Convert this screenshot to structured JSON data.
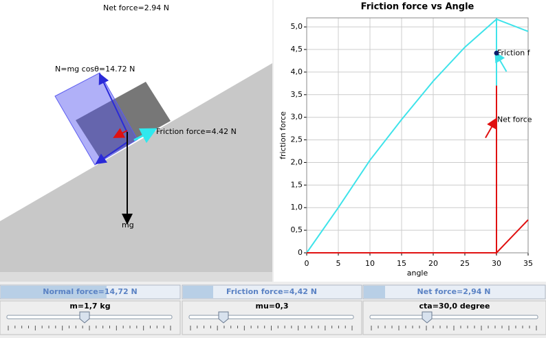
{
  "simulation": {
    "net_force_label": "Net force=2.94 N",
    "normal_label": "N=mg cosθ=14.72 N",
    "friction_label": "Friction force=4.42 N",
    "weight_label": "mg"
  },
  "chart_data": {
    "type": "line",
    "title": "Friction force vs Angle",
    "x_label": "angle",
    "y_label": "friction force",
    "series": [
      {
        "color": "#3ee3ea",
        "x": [
          0,
          5,
          10,
          15,
          20,
          25,
          30,
          30,
          30,
          35
        ],
        "values": [
          0,
          1.0,
          2.05,
          2.95,
          3.8,
          4.55,
          5.17,
          3.5,
          5.17,
          4.9
        ]
      },
      {
        "color": "#e01010",
        "x": [
          0,
          30,
          30,
          30,
          35
        ],
        "values": [
          0,
          0,
          3.7,
          0,
          0.73
        ]
      }
    ],
    "points": [
      {
        "x": 30,
        "y": 4.42,
        "color": "#0b1d6b"
      }
    ],
    "annotations": [
      {
        "text": "Friction f",
        "x": 30,
        "y": 4.42,
        "color": "#3ee3ea"
      },
      {
        "text": "Net force",
        "x": 30,
        "y": 2.94,
        "color": "#e01010"
      }
    ],
    "xlim": [
      0,
      35
    ],
    "ylim": [
      0,
      5.2
    ],
    "xticks": [
      0,
      5,
      10,
      15,
      20,
      25,
      30,
      35
    ],
    "yticks": [
      0,
      {
        "value": 0.5,
        "label": "0,5"
      },
      {
        "value": 1,
        "label": "1,0"
      },
      {
        "value": 1.5,
        "label": "1,5"
      },
      {
        "value": 2,
        "label": "2,0"
      },
      {
        "value": 2.5,
        "label": "2,5"
      },
      {
        "value": 3,
        "label": "3,0"
      },
      {
        "value": 3.5,
        "label": "3,5"
      },
      {
        "value": 4,
        "label": "4,0"
      },
      {
        "value": 4.5,
        "label": "4,5"
      },
      {
        "value": 5,
        "label": "5,0"
      }
    ],
    "grid": true
  },
  "status_bars": [
    "Normal force=14,72 N",
    "Friction force=4,42 N",
    "Net force=2,94 N"
  ],
  "sliders": [
    "m=1,7 kg",
    "mu=0,3",
    "cta=30,0 degree"
  ]
}
